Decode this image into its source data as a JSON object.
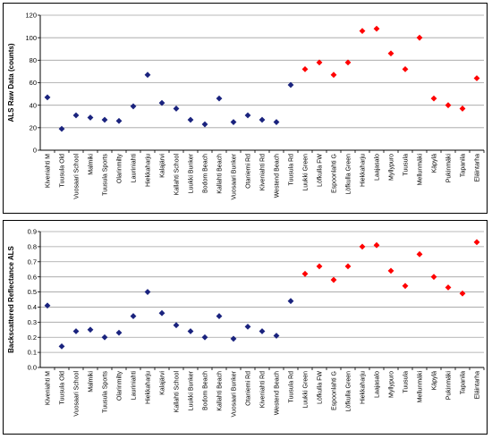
{
  "colors": {
    "blue": "#1a237e",
    "red": "#ff0000",
    "grid": "#a0a0a0",
    "axis": "#000000"
  },
  "chart_data": [
    {
      "type": "scatter",
      "title": "",
      "ylabel": "ALS Raw Data (counts)",
      "xlabel": "",
      "ylim": [
        0,
        120
      ],
      "yticks": [
        0,
        20,
        40,
        60,
        80,
        100,
        120
      ],
      "grid": true,
      "categories": [
        "Kiveniahti M",
        "Tuusula Old",
        "Vuosaari School",
        "Malmiki",
        "Tuusula Sports",
        "Olarinmilty",
        "Lauriniahti",
        "Hiekkaharju",
        "Kalajärvi",
        "Kallahti School",
        "Luukki Bunker",
        "Bodom Beach",
        "Kallahti Beach",
        "Vuosaari Bunker",
        "Otaniemi Rd",
        "Kiveniahti Rd",
        "Westend Beach",
        "Tuusula Rd",
        "Luukki Green",
        "Löfkulla FW",
        "Espoonlahti G",
        "Löfkulla Green",
        "Hiekkaharju",
        "Laajasalo",
        "Myllypuro",
        "Tuusula",
        "Mellunmäki",
        "Käpylä",
        "Pukinmäki",
        "Tapanila",
        "Eläintarha"
      ],
      "values": [
        47,
        19,
        31,
        29,
        27,
        26,
        39,
        67,
        42,
        37,
        27,
        23,
        46,
        25,
        31,
        27,
        25,
        58,
        72,
        78,
        67,
        78,
        106,
        108,
        86,
        72,
        100,
        46,
        40,
        37,
        64
      ],
      "colors": [
        "blue",
        "blue",
        "blue",
        "blue",
        "blue",
        "blue",
        "blue",
        "blue",
        "blue",
        "blue",
        "blue",
        "blue",
        "blue",
        "blue",
        "blue",
        "blue",
        "blue",
        "blue",
        "red",
        "red",
        "red",
        "red",
        "red",
        "red",
        "red",
        "red",
        "red",
        "red",
        "red",
        "red",
        "red"
      ]
    },
    {
      "type": "scatter",
      "title": "",
      "ylabel": "Backscattered Reflectance ALS",
      "xlabel": "",
      "ylim": [
        0,
        0.9
      ],
      "yticks": [
        "0.0",
        "0.1",
        "0.2",
        "0.3",
        "0.4",
        "0.5",
        "0.6",
        "0.7",
        "0.8",
        "0.9"
      ],
      "grid": true,
      "categories": [
        "Kiveniahti M",
        "Tuusula Old",
        "Vuosaari School",
        "Malmiki",
        "Tuusula Sports",
        "Olarinmilty",
        "Lauriniahti",
        "Hiekkaharju",
        "Kalajärvi",
        "Kallahti School",
        "Luukki Bunker",
        "Bodom Beach",
        "Kallahti Beach",
        "Vuosaari Bunker",
        "Otaniemi Rd",
        "Kiveniahti Rd",
        "Westend Beach",
        "Tuusula Rd",
        "Luukki Green",
        "Löfkulla FW",
        "Espoonlahti G",
        "Löfkulla Green",
        "Hiekkaharju",
        "Laajasalo",
        "Myllypuro",
        "Tuusula",
        "Mellunmäki",
        "Käpylä",
        "Pukinmäki",
        "Tapanila",
        "Eläintarha"
      ],
      "values": [
        0.41,
        0.14,
        0.24,
        0.25,
        0.2,
        0.23,
        0.34,
        0.5,
        0.36,
        0.28,
        0.24,
        0.2,
        0.34,
        0.19,
        0.27,
        0.24,
        0.21,
        0.44,
        0.62,
        0.67,
        0.58,
        0.67,
        0.8,
        0.81,
        0.64,
        0.54,
        0.75,
        0.6,
        0.53,
        0.49,
        0.83
      ],
      "colors": [
        "blue",
        "blue",
        "blue",
        "blue",
        "blue",
        "blue",
        "blue",
        "blue",
        "blue",
        "blue",
        "blue",
        "blue",
        "blue",
        "blue",
        "blue",
        "blue",
        "blue",
        "blue",
        "red",
        "red",
        "red",
        "red",
        "red",
        "red",
        "red",
        "red",
        "red",
        "red",
        "red",
        "red",
        "red"
      ]
    }
  ]
}
